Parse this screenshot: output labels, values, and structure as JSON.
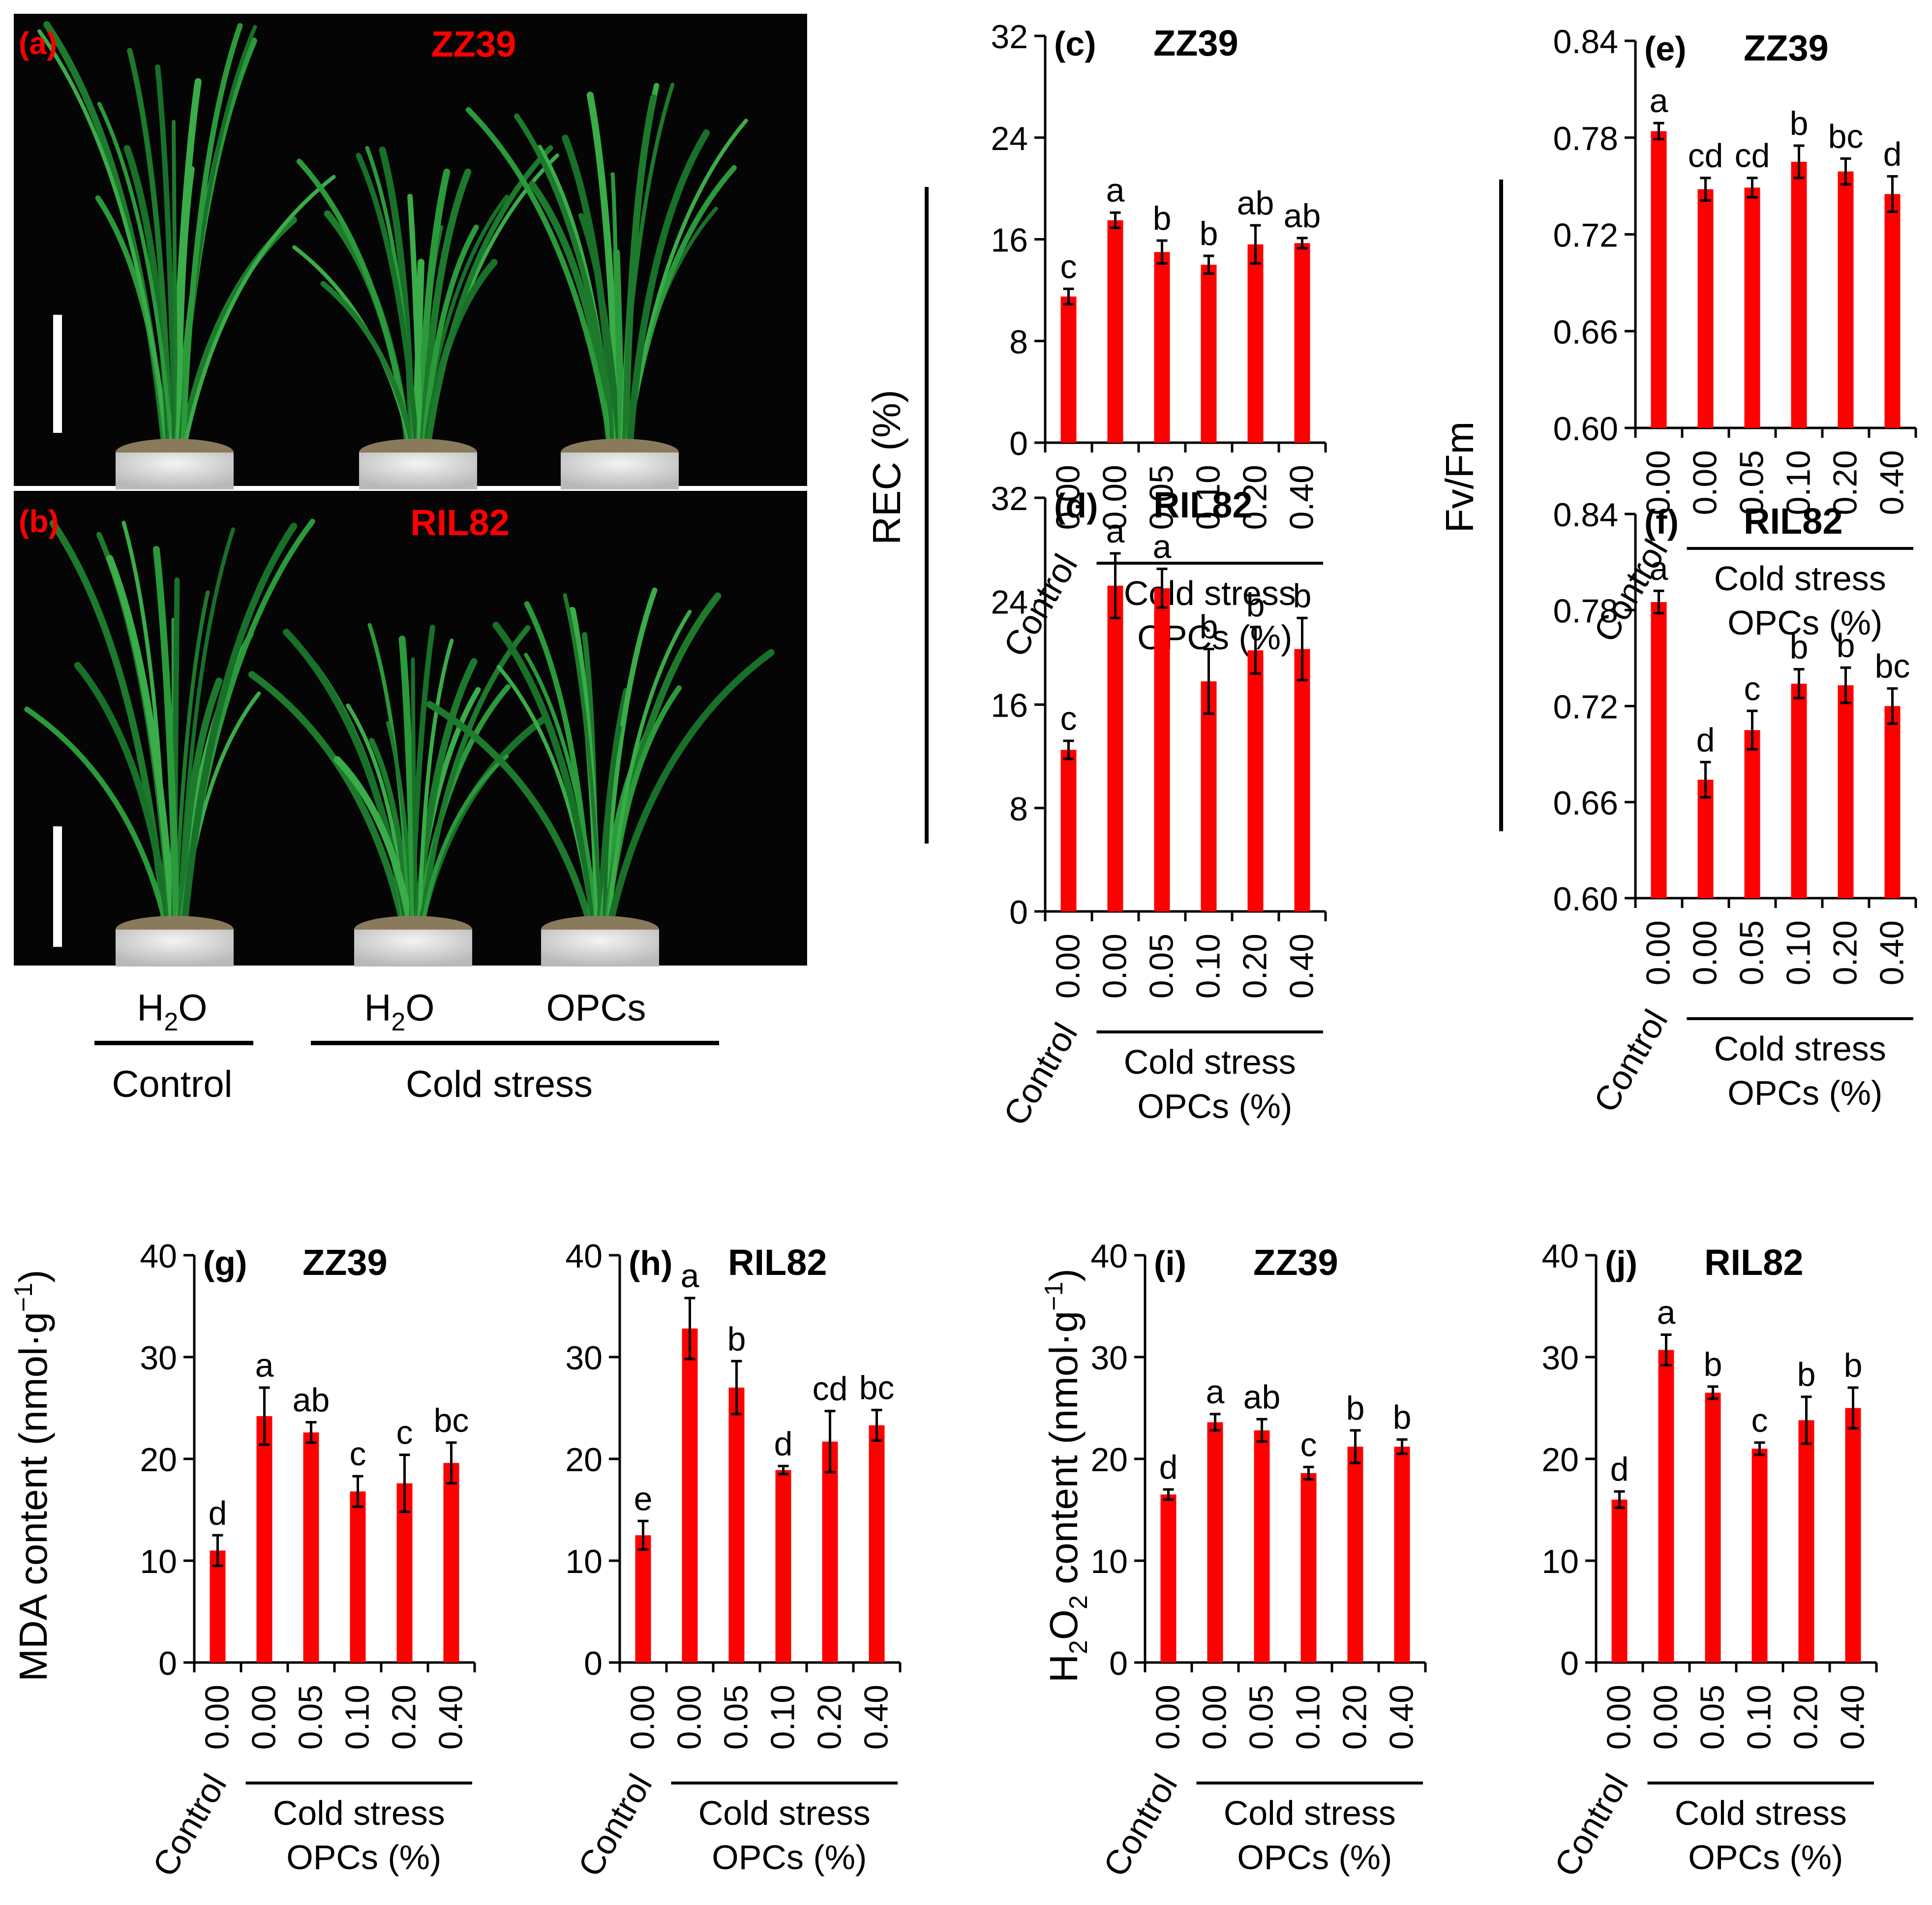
{
  "photos": {
    "a": {
      "panel": "(a)",
      "cultivar": "ZZ39"
    },
    "b": {
      "panel": "(b)",
      "cultivar": "RIL82"
    },
    "groups": {
      "h2o": "H",
      "h2o_sub": "2",
      "h2o_end": "O",
      "opcs": "OPCs",
      "control": "Control",
      "cold": "Cold stress"
    }
  },
  "axis_titles": {
    "rec": "REC (%)",
    "fvfm": "Fv/Fm",
    "mda": "MDA content (nmol·g",
    "mda_sup": "−1",
    "mda_end": ")",
    "h2o2_a": "H",
    "h2o2_sub1": "2",
    "h2o2_b": "O",
    "h2o2_sub2": "2",
    "h2o2_c": " content (nmol·g",
    "h2o2_sup": "−1",
    "h2o2_end": ")"
  },
  "x_labels": {
    "control": "Control",
    "cold": "Cold stress",
    "opcs": "OPCs (%)",
    "ticks": [
      "0.00",
      "0.00",
      "0.05",
      "0.10",
      "0.20",
      "0.40"
    ]
  },
  "colors": {
    "bar": "#ff0000",
    "text_red": "#ff0000",
    "photo_bg": "#050505"
  },
  "chart_data": [
    {
      "id": "c",
      "type": "bar",
      "panel": "(c)",
      "title": "ZZ39",
      "ylim": [
        0,
        32
      ],
      "yticks": [
        0,
        8,
        16,
        24,
        32
      ],
      "values": [
        11.5,
        17.5,
        15.0,
        14.0,
        15.6,
        15.7
      ],
      "errors": [
        0.6,
        0.6,
        0.9,
        0.7,
        1.5,
        0.4
      ],
      "letters": [
        "c",
        "a",
        "b",
        "b",
        "ab",
        "ab"
      ]
    },
    {
      "id": "d",
      "type": "bar",
      "panel": "(d)",
      "title": "RIL82",
      "ylim": [
        0,
        32
      ],
      "yticks": [
        0,
        8,
        16,
        24,
        32
      ],
      "values": [
        12.5,
        25.2,
        25.0,
        17.8,
        20.2,
        20.3
      ],
      "errors": [
        0.7,
        2.5,
        1.5,
        2.5,
        1.8,
        2.4
      ],
      "letters": [
        "c",
        "a",
        "a",
        "b",
        "b",
        "b"
      ]
    },
    {
      "id": "e",
      "type": "bar",
      "panel": "(e)",
      "title": "ZZ39",
      "ylim": [
        0.6,
        0.84
      ],
      "yticks": [
        0.6,
        0.66,
        0.72,
        0.78,
        0.84
      ],
      "values": [
        0.784,
        0.748,
        0.749,
        0.765,
        0.759,
        0.745
      ],
      "errors": [
        0.005,
        0.007,
        0.006,
        0.01,
        0.008,
        0.011
      ],
      "letters": [
        "a",
        "cd",
        "cd",
        "b",
        "bc",
        "d"
      ]
    },
    {
      "id": "f",
      "type": "bar",
      "panel": "(f)",
      "title": "RIL82",
      "ylim": [
        0.6,
        0.84
      ],
      "yticks": [
        0.6,
        0.66,
        0.72,
        0.78,
        0.84
      ],
      "values": [
        0.785,
        0.674,
        0.705,
        0.734,
        0.733,
        0.72
      ],
      "errors": [
        0.007,
        0.011,
        0.012,
        0.009,
        0.011,
        0.011
      ],
      "letters": [
        "a",
        "d",
        "c",
        "b",
        "b",
        "bc"
      ]
    },
    {
      "id": "g",
      "type": "bar",
      "panel": "(g)",
      "title": "ZZ39",
      "ylim": [
        0,
        40
      ],
      "yticks": [
        0,
        10,
        20,
        30,
        40
      ],
      "values": [
        11.0,
        24.2,
        22.6,
        16.8,
        17.6,
        19.6
      ],
      "errors": [
        1.5,
        2.8,
        1.0,
        1.5,
        2.8,
        2.0
      ],
      "letters": [
        "d",
        "a",
        "ab",
        "c",
        "c",
        "bc"
      ]
    },
    {
      "id": "h",
      "type": "bar",
      "panel": "(h)",
      "title": "RIL82",
      "ylim": [
        0,
        40
      ],
      "yticks": [
        0,
        10,
        20,
        30,
        40
      ],
      "values": [
        12.5,
        32.8,
        27.0,
        18.9,
        21.7,
        23.3
      ],
      "errors": [
        1.4,
        3.0,
        2.6,
        0.4,
        3.0,
        1.5
      ],
      "letters": [
        "e",
        "a",
        "b",
        "d",
        "cd",
        "bc"
      ]
    },
    {
      "id": "i",
      "type": "bar",
      "panel": "(i)",
      "title": "ZZ39",
      "ylim": [
        0,
        40
      ],
      "yticks": [
        0,
        10,
        20,
        30,
        40
      ],
      "values": [
        16.5,
        23.6,
        22.8,
        18.6,
        21.2,
        21.2
      ],
      "errors": [
        0.5,
        0.8,
        1.1,
        0.6,
        1.6,
        0.7
      ],
      "letters": [
        "d",
        "a",
        "ab",
        "c",
        "b",
        "b"
      ]
    },
    {
      "id": "j",
      "type": "bar",
      "panel": "(j)",
      "title": "RIL82",
      "ylim": [
        0,
        40
      ],
      "yticks": [
        0,
        10,
        20,
        30,
        40
      ],
      "values": [
        16.0,
        30.7,
        26.5,
        21.0,
        23.8,
        25.0
      ],
      "errors": [
        0.8,
        1.5,
        0.6,
        0.6,
        2.3,
        2.0
      ],
      "letters": [
        "d",
        "a",
        "b",
        "c",
        "b",
        "b"
      ]
    }
  ]
}
